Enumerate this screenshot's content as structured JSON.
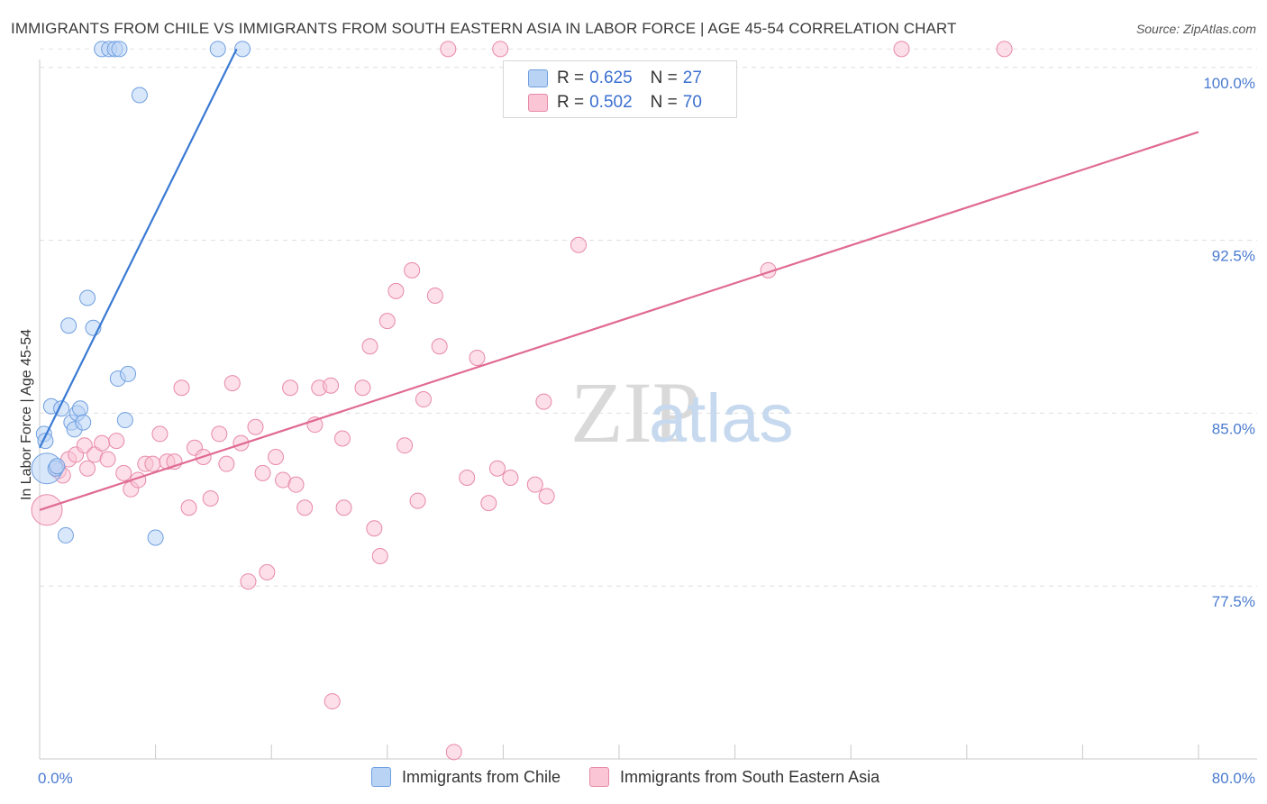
{
  "title": "IMMIGRANTS FROM CHILE VS IMMIGRANTS FROM SOUTH EASTERN ASIA IN LABOR FORCE | AGE 45-54 CORRELATION CHART",
  "source": "Source: ZipAtlas.com",
  "watermark": {
    "zip": "ZIP",
    "atlas": "atlas"
  },
  "legend": {
    "r_label": "R =",
    "n_label": "N =",
    "series": [
      {
        "name": "Immigrants from Chile",
        "r": "0.625",
        "n": "27",
        "fill": "#b9d3f5",
        "stroke": "#6f9fe0"
      },
      {
        "name": "Immigrants from South Eastern Asia",
        "r": "0.502",
        "n": "70",
        "fill": "#fac5d5",
        "stroke": "#e889a8"
      }
    ]
  },
  "chart_data": {
    "type": "scatter",
    "title": "IMMIGRANTS FROM CHILE VS IMMIGRANTS FROM SOUTH EASTERN ASIA IN LABOR FORCE | AGE 45-54 CORRELATION CHART",
    "xlabel": "",
    "ylabel": "In Labor Force | Age 45-54",
    "xlim": [
      0,
      80
    ],
    "ylim": [
      70.0,
      100.5
    ],
    "x_tick_labels": [
      "0.0%",
      "80.0%"
    ],
    "y_ticks": [
      77.5,
      85.0,
      92.5,
      100.0
    ],
    "y_tick_labels": [
      "77.5%",
      "85.0%",
      "92.5%",
      "100.0%"
    ],
    "grid": true,
    "series": [
      {
        "name": "Immigrants from Chile",
        "color": "#6f9fe0",
        "fill": "#b9d3f5",
        "trend": {
          "x": [
            0,
            13.6
          ],
          "y": [
            83.5,
            100.8
          ],
          "color": "#3a7ad4"
        },
        "points": [
          {
            "x": 0.3,
            "y": 84.1
          },
          {
            "x": 0.4,
            "y": 83.8
          },
          {
            "x": 0.5,
            "y": 82.6,
            "big": true
          },
          {
            "x": 0.8,
            "y": 85.3
          },
          {
            "x": 1.1,
            "y": 82.6
          },
          {
            "x": 1.2,
            "y": 82.7
          },
          {
            "x": 1.5,
            "y": 85.2
          },
          {
            "x": 1.8,
            "y": 79.7
          },
          {
            "x": 2.0,
            "y": 88.8
          },
          {
            "x": 2.2,
            "y": 84.6
          },
          {
            "x": 2.4,
            "y": 84.3
          },
          {
            "x": 2.6,
            "y": 85.0
          },
          {
            "x": 2.8,
            "y": 85.2
          },
          {
            "x": 3.0,
            "y": 84.6
          },
          {
            "x": 3.3,
            "y": 90.0
          },
          {
            "x": 3.7,
            "y": 88.7
          },
          {
            "x": 4.3,
            "y": 100.8
          },
          {
            "x": 4.8,
            "y": 100.8
          },
          {
            "x": 5.2,
            "y": 100.8
          },
          {
            "x": 5.4,
            "y": 86.5
          },
          {
            "x": 5.5,
            "y": 100.8
          },
          {
            "x": 5.9,
            "y": 84.7
          },
          {
            "x": 6.1,
            "y": 86.7
          },
          {
            "x": 6.9,
            "y": 98.8
          },
          {
            "x": 8.0,
            "y": 79.6
          },
          {
            "x": 12.3,
            "y": 100.8
          },
          {
            "x": 14.0,
            "y": 100.8
          }
        ]
      },
      {
        "name": "Immigrants from South Eastern Asia",
        "color": "#e889a8",
        "fill": "#fac5d5",
        "trend": {
          "x": [
            0,
            80
          ],
          "y": [
            80.8,
            97.2
          ],
          "color": "#e06a93"
        },
        "points": [
          {
            "x": 0.5,
            "y": 80.8,
            "big": true
          },
          {
            "x": 1.3,
            "y": 82.5
          },
          {
            "x": 1.6,
            "y": 82.3
          },
          {
            "x": 2.0,
            "y": 83.0
          },
          {
            "x": 2.5,
            "y": 83.2
          },
          {
            "x": 3.1,
            "y": 83.6
          },
          {
            "x": 3.3,
            "y": 82.6
          },
          {
            "x": 3.8,
            "y": 83.2
          },
          {
            "x": 4.3,
            "y": 83.7
          },
          {
            "x": 4.7,
            "y": 83.0
          },
          {
            "x": 5.3,
            "y": 83.8
          },
          {
            "x": 5.8,
            "y": 82.4
          },
          {
            "x": 6.3,
            "y": 81.7
          },
          {
            "x": 6.8,
            "y": 82.1
          },
          {
            "x": 7.3,
            "y": 82.8
          },
          {
            "x": 7.8,
            "y": 82.8
          },
          {
            "x": 8.3,
            "y": 84.1
          },
          {
            "x": 8.8,
            "y": 82.9
          },
          {
            "x": 9.3,
            "y": 82.9
          },
          {
            "x": 9.8,
            "y": 86.1
          },
          {
            "x": 10.3,
            "y": 80.9
          },
          {
            "x": 10.7,
            "y": 83.5
          },
          {
            "x": 11.3,
            "y": 83.1
          },
          {
            "x": 11.8,
            "y": 81.3
          },
          {
            "x": 12.4,
            "y": 84.1
          },
          {
            "x": 12.9,
            "y": 82.8
          },
          {
            "x": 13.3,
            "y": 86.3
          },
          {
            "x": 13.9,
            "y": 83.7
          },
          {
            "x": 14.4,
            "y": 77.7
          },
          {
            "x": 14.9,
            "y": 84.4
          },
          {
            "x": 15.4,
            "y": 82.4
          },
          {
            "x": 15.7,
            "y": 78.1
          },
          {
            "x": 16.3,
            "y": 83.1
          },
          {
            "x": 16.8,
            "y": 82.1
          },
          {
            "x": 17.3,
            "y": 86.1
          },
          {
            "x": 17.7,
            "y": 81.9
          },
          {
            "x": 18.3,
            "y": 80.9
          },
          {
            "x": 19.0,
            "y": 84.5
          },
          {
            "x": 19.3,
            "y": 86.1
          },
          {
            "x": 20.1,
            "y": 86.2
          },
          {
            "x": 20.2,
            "y": 72.5
          },
          {
            "x": 20.9,
            "y": 83.9
          },
          {
            "x": 21.0,
            "y": 80.9
          },
          {
            "x": 22.3,
            "y": 86.1
          },
          {
            "x": 22.8,
            "y": 87.9
          },
          {
            "x": 23.1,
            "y": 80.0
          },
          {
            "x": 23.5,
            "y": 78.8
          },
          {
            "x": 24.0,
            "y": 89.0
          },
          {
            "x": 24.6,
            "y": 90.3
          },
          {
            "x": 25.2,
            "y": 83.6
          },
          {
            "x": 25.7,
            "y": 91.2
          },
          {
            "x": 26.1,
            "y": 81.2
          },
          {
            "x": 26.5,
            "y": 85.6
          },
          {
            "x": 27.3,
            "y": 90.1
          },
          {
            "x": 27.6,
            "y": 87.9
          },
          {
            "x": 28.2,
            "y": 100.8
          },
          {
            "x": 28.6,
            "y": 70.3
          },
          {
            "x": 29.5,
            "y": 82.2
          },
          {
            "x": 30.2,
            "y": 87.4
          },
          {
            "x": 31.0,
            "y": 81.1
          },
          {
            "x": 31.6,
            "y": 82.6
          },
          {
            "x": 31.8,
            "y": 100.8
          },
          {
            "x": 32.5,
            "y": 82.2
          },
          {
            "x": 34.2,
            "y": 81.9
          },
          {
            "x": 34.8,
            "y": 85.5
          },
          {
            "x": 35.0,
            "y": 81.4
          },
          {
            "x": 37.2,
            "y": 92.3
          },
          {
            "x": 50.3,
            "y": 91.2
          },
          {
            "x": 59.5,
            "y": 100.8
          },
          {
            "x": 66.6,
            "y": 100.8
          }
        ]
      }
    ]
  }
}
